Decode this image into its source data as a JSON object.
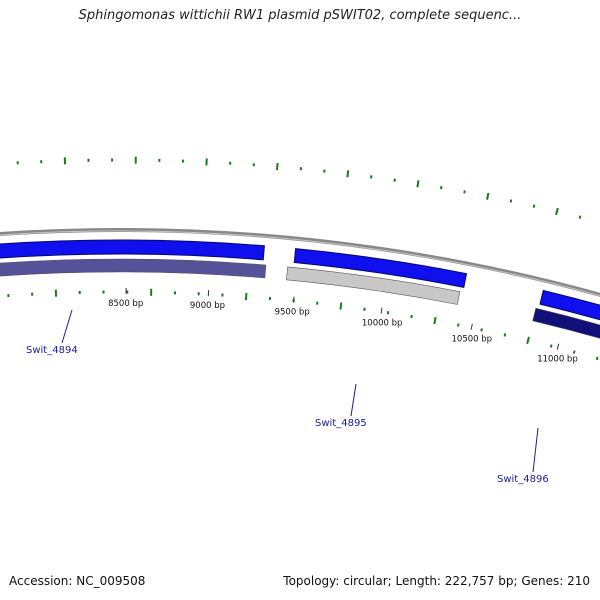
{
  "header": {
    "title": "Sphingomonas wittichii RW1 plasmid pSWIT02, complete sequenc..."
  },
  "footer": {
    "accession": "Accession: NC_009508",
    "summary": "Topology: circular; Length: 222,757 bp; Genes: 210"
  },
  "scale": {
    "ticks": [
      {
        "label": "8500 bp"
      },
      {
        "label": "9000 bp"
      },
      {
        "label": "9500 bp"
      },
      {
        "label": "10000 bp"
      },
      {
        "label": "10500 bp"
      },
      {
        "label": "11000 bp"
      }
    ]
  },
  "genes": [
    {
      "label": "Swit_4894"
    },
    {
      "label": "Swit_4895"
    },
    {
      "label": "Swit_4896"
    }
  ],
  "colors": {
    "forward_cds": "#1010ee",
    "reverse_cds_1": "#55529a",
    "reverse_cds_2": "#c8c8c8",
    "reverse_cds_3": "#101078",
    "backbone": "#888888",
    "gc_skew": "#1a7a1a",
    "gene_label": "#1a1aa0"
  }
}
